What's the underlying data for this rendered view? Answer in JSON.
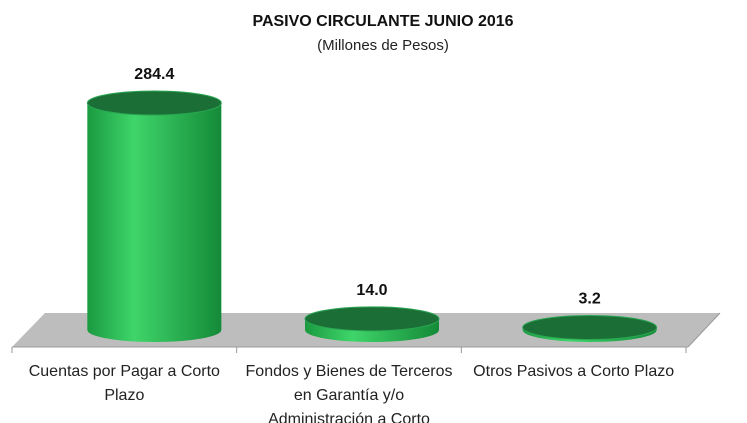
{
  "chart_data": {
    "type": "cylinder",
    "title": "PASIVO CIRCULANTE JUNIO 2016",
    "subtitle": "(Millones de Pesos)",
    "categories": [
      "Cuentas por Pagar a Corto Plazo",
      "Fondos y Bienes de Terceros en Garantía y/o Administración a Corto",
      "Otros Pasivos a Corto Plazo"
    ],
    "values": [
      284.4,
      14,
      3.2
    ],
    "value_labels": [
      "284.4",
      "14.0",
      "3.2"
    ],
    "color": "#22b04b"
  }
}
